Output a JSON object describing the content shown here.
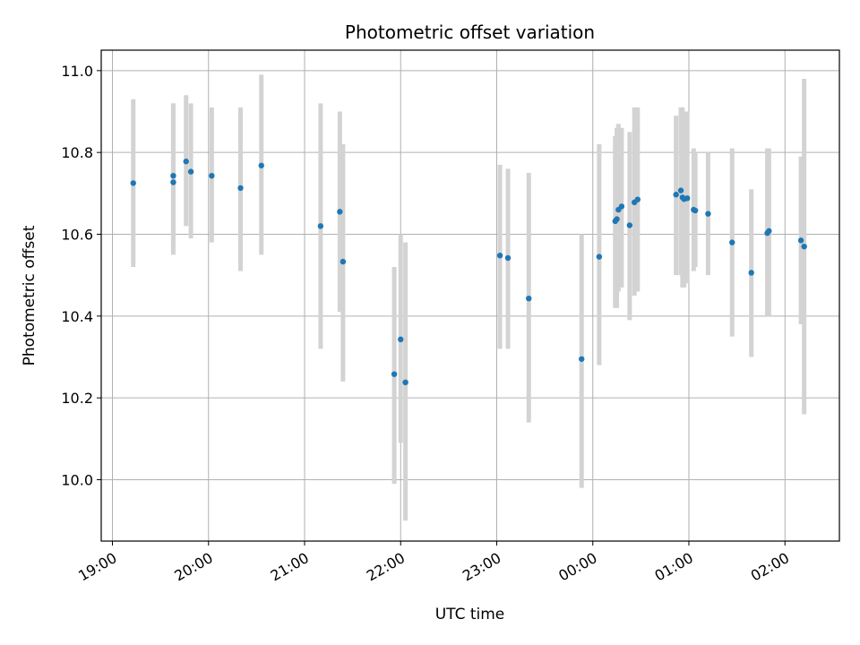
{
  "chart_data": {
    "type": "scatter",
    "title": "Photometric offset variation",
    "xlabel": "UTC time",
    "ylabel": "Photometric offset",
    "grid": true,
    "xlim": [
      "18:53",
      "02:34"
    ],
    "ylim": [
      9.85,
      11.05
    ],
    "x_ticks": [
      "19:00",
      "20:00",
      "21:00",
      "22:00",
      "23:00",
      "00:00",
      "01:00",
      "02:00"
    ],
    "y_ticks": [
      "10.0",
      "10.2",
      "10.4",
      "10.6",
      "10.8",
      "11.0"
    ],
    "point_color": "#1f77b4",
    "errorbar_color": "#d3d3d3",
    "points": [
      {
        "t": "19:13",
        "y": 10.725,
        "lo": 10.52,
        "hi": 10.93
      },
      {
        "t": "19:38",
        "y": 10.727,
        "lo": 10.55,
        "hi": 10.92
      },
      {
        "t": "19:38",
        "y": 10.743,
        "lo": 10.57,
        "hi": 10.92
      },
      {
        "t": "19:46",
        "y": 10.778,
        "lo": 10.62,
        "hi": 10.94
      },
      {
        "t": "19:49",
        "y": 10.753,
        "lo": 10.59,
        "hi": 10.92
      },
      {
        "t": "20:02",
        "y": 10.743,
        "lo": 10.58,
        "hi": 10.91
      },
      {
        "t": "20:20",
        "y": 10.713,
        "lo": 10.51,
        "hi": 10.91
      },
      {
        "t": "20:33",
        "y": 10.768,
        "lo": 10.55,
        "hi": 10.99
      },
      {
        "t": "21:10",
        "y": 10.62,
        "lo": 10.32,
        "hi": 10.92
      },
      {
        "t": "21:22",
        "y": 10.655,
        "lo": 10.41,
        "hi": 10.9
      },
      {
        "t": "21:24",
        "y": 10.533,
        "lo": 10.24,
        "hi": 10.82
      },
      {
        "t": "21:56",
        "y": 10.258,
        "lo": 9.99,
        "hi": 10.52
      },
      {
        "t": "22:00",
        "y": 10.343,
        "lo": 10.09,
        "hi": 10.6
      },
      {
        "t": "22:03",
        "y": 10.238,
        "lo": 9.9,
        "hi": 10.58
      },
      {
        "t": "23:02",
        "y": 10.548,
        "lo": 10.32,
        "hi": 10.77
      },
      {
        "t": "23:07",
        "y": 10.542,
        "lo": 10.32,
        "hi": 10.76
      },
      {
        "t": "23:20",
        "y": 10.443,
        "lo": 10.14,
        "hi": 10.75
      },
      {
        "t": "23:53",
        "y": 10.295,
        "lo": 9.98,
        "hi": 10.6
      },
      {
        "t": "00:04",
        "y": 10.545,
        "lo": 10.28,
        "hi": 10.82
      },
      {
        "t": "00:14",
        "y": 10.632,
        "lo": 10.42,
        "hi": 10.84
      },
      {
        "t": "00:15",
        "y": 10.637,
        "lo": 10.42,
        "hi": 10.86
      },
      {
        "t": "00:16",
        "y": 10.66,
        "lo": 10.46,
        "hi": 10.87
      },
      {
        "t": "00:18",
        "y": 10.668,
        "lo": 10.47,
        "hi": 10.86
      },
      {
        "t": "00:23",
        "y": 10.622,
        "lo": 10.39,
        "hi": 10.85
      },
      {
        "t": "00:26",
        "y": 10.678,
        "lo": 10.45,
        "hi": 10.91
      },
      {
        "t": "00:28",
        "y": 10.685,
        "lo": 10.46,
        "hi": 10.91
      },
      {
        "t": "00:52",
        "y": 10.697,
        "lo": 10.5,
        "hi": 10.89
      },
      {
        "t": "00:55",
        "y": 10.707,
        "lo": 10.5,
        "hi": 10.91
      },
      {
        "t": "00:56",
        "y": 10.69,
        "lo": 10.47,
        "hi": 10.91
      },
      {
        "t": "00:57",
        "y": 10.686,
        "lo": 10.47,
        "hi": 10.9
      },
      {
        "t": "00:59",
        "y": 10.688,
        "lo": 10.48,
        "hi": 10.9
      },
      {
        "t": "01:03",
        "y": 10.66,
        "lo": 10.51,
        "hi": 10.81
      },
      {
        "t": "01:04",
        "y": 10.658,
        "lo": 10.52,
        "hi": 10.8
      },
      {
        "t": "01:12",
        "y": 10.65,
        "lo": 10.5,
        "hi": 10.8
      },
      {
        "t": "01:27",
        "y": 10.58,
        "lo": 10.35,
        "hi": 10.81
      },
      {
        "t": "01:39",
        "y": 10.506,
        "lo": 10.3,
        "hi": 10.71
      },
      {
        "t": "01:49",
        "y": 10.603,
        "lo": 10.4,
        "hi": 10.81
      },
      {
        "t": "01:50",
        "y": 10.608,
        "lo": 10.4,
        "hi": 10.81
      },
      {
        "t": "02:10",
        "y": 10.585,
        "lo": 10.38,
        "hi": 10.79
      },
      {
        "t": "02:12",
        "y": 10.57,
        "lo": 10.16,
        "hi": 10.98
      }
    ]
  }
}
